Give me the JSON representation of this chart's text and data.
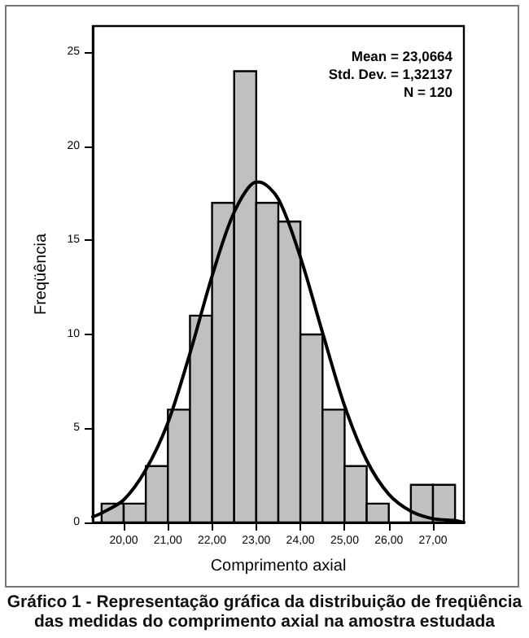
{
  "chart_data": {
    "type": "histogram",
    "title": "Gráfico 1 - Representação gráfica da distribuição de freqüência das medidas do comprimento axial na amostra estudada",
    "xlabel": "Comprimento axial",
    "ylabel": "Freqüência",
    "annotations": [
      "Mean = 23,0664",
      "Std. Dev. = 1,32137",
      "N = 120"
    ],
    "series": [
      {
        "color": "#c0c0c0",
        "bins": [
          19.5,
          20,
          20.5,
          21,
          21.5,
          22,
          22.5,
          23,
          23.5,
          24,
          24.5,
          25,
          25.5,
          26,
          26.5,
          27,
          27.5
        ],
        "values": [
          1,
          1,
          3,
          6,
          11,
          17,
          24,
          17,
          16,
          10,
          6,
          3,
          1,
          0,
          2,
          2
        ]
      },
      {
        "type": "line",
        "color": "#000000",
        "x": [
          19.3,
          19.5,
          20,
          20.5,
          21,
          21.5,
          22,
          22.5,
          23,
          23.07,
          23.5,
          24,
          24.5,
          25,
          25.5,
          26,
          26.5,
          27,
          27.5,
          27.7
        ],
        "values": [
          0.3,
          0.5,
          1.2,
          2.8,
          5.3,
          9,
          13.1,
          16.5,
          18.1,
          18.1,
          17.2,
          14.1,
          10.1,
          6.2,
          3.3,
          1.5,
          0.6,
          0.2,
          0.1,
          0
        ]
      }
    ],
    "xlim": [
      19.3,
      27.7
    ],
    "ylim": [
      0,
      26.4
    ],
    "xticks": [
      {
        "value": 20,
        "label": "20,00"
      },
      {
        "value": 21,
        "label": "21,00"
      },
      {
        "value": 22,
        "label": "22,00"
      },
      {
        "value": 23,
        "label": "23,00"
      },
      {
        "value": 24,
        "label": "24,00"
      },
      {
        "value": 25,
        "label": "25,00"
      },
      {
        "value": 26,
        "label": "26,00"
      },
      {
        "value": 27,
        "label": "27,00"
      }
    ],
    "yticks": [
      0,
      5,
      10,
      15,
      20,
      25
    ],
    "grid": false,
    "line_style": "solid"
  }
}
